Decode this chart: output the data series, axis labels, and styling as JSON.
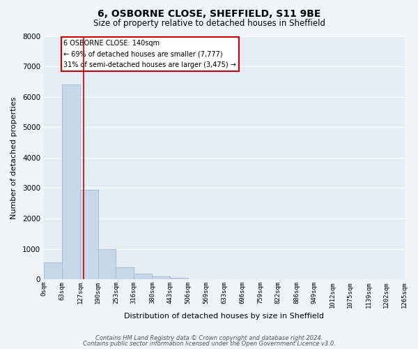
{
  "title": "6, OSBORNE CLOSE, SHEFFIELD, S11 9BE",
  "subtitle": "Size of property relative to detached houses in Sheffield",
  "xlabel": "Distribution of detached houses by size in Sheffield",
  "ylabel": "Number of detached properties",
  "bar_edges": [
    0,
    63,
    127,
    190,
    253,
    316,
    380,
    443,
    506,
    569,
    633,
    696,
    759,
    822,
    886,
    949,
    1012,
    1075,
    1139,
    1202,
    1265
  ],
  "bar_heights": [
    560,
    6400,
    2950,
    980,
    390,
    190,
    100,
    60,
    0,
    0,
    0,
    0,
    0,
    0,
    0,
    0,
    0,
    0,
    0,
    0
  ],
  "bar_color": "#c8d8ea",
  "bar_edge_color": "#a0b8cc",
  "property_line_x": 140,
  "property_line_color": "#cc0000",
  "ylim": [
    0,
    8000
  ],
  "annotation_text_line1": "6 OSBORNE CLOSE: 140sqm",
  "annotation_text_line2": "← 69% of detached houses are smaller (7,777)",
  "annotation_text_line3": "31% of semi-detached houses are larger (3,475) →",
  "annotation_box_color": "#ffffff",
  "annotation_box_edge": "#cc0000",
  "tick_labels": [
    "0sqm",
    "63sqm",
    "127sqm",
    "190sqm",
    "253sqm",
    "316sqm",
    "380sqm",
    "443sqm",
    "506sqm",
    "569sqm",
    "633sqm",
    "696sqm",
    "759sqm",
    "822sqm",
    "886sqm",
    "949sqm",
    "1012sqm",
    "1075sqm",
    "1139sqm",
    "1202sqm",
    "1265sqm"
  ],
  "footer_line1": "Contains HM Land Registry data © Crown copyright and database right 2024.",
  "footer_line2": "Contains public sector information licensed under the Open Government Licence v3.0.",
  "fig_background": "#f2f5f8",
  "plot_background": "#e4ecf4",
  "grid_color": "#ffffff",
  "title_fontsize": 10,
  "subtitle_fontsize": 8.5
}
